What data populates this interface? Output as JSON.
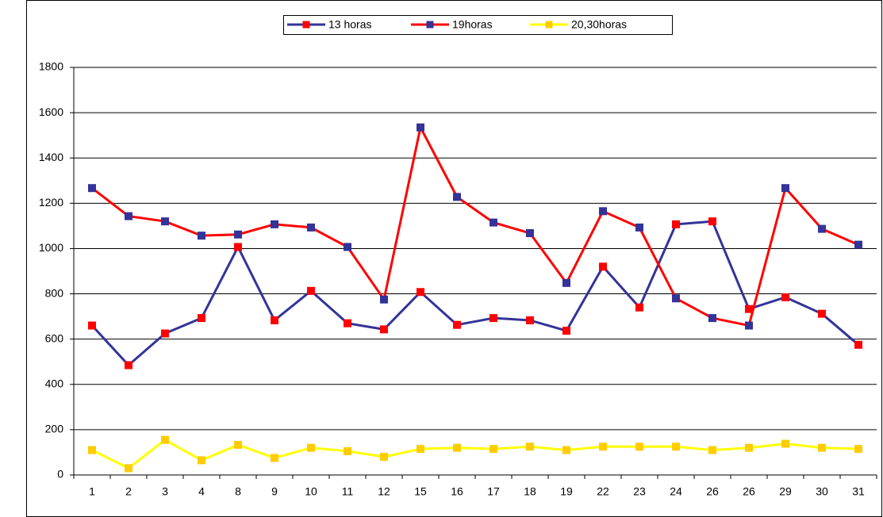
{
  "chart_data": {
    "type": "line",
    "categories": [
      "1",
      "2",
      "3",
      "4",
      "8",
      "9",
      "10",
      "11",
      "12",
      "15",
      "16",
      "17",
      "18",
      "19",
      "22",
      "23",
      "24",
      "26",
      "26",
      "29",
      "30",
      "31"
    ],
    "series": [
      {
        "name": "13 horas",
        "color": "#333399",
        "marker_color": "#ff0000",
        "values": [
          660,
          485,
          625,
          693,
          1007,
          683,
          813,
          670,
          643,
          808,
          663,
          693,
          683,
          637,
          920,
          740,
          1107,
          1120,
          733,
          785,
          712,
          575
        ]
      },
      {
        "name": "19horas",
        "color": "#ff0000",
        "marker_color": "#333399",
        "values": [
          1267,
          1143,
          1120,
          1057,
          1062,
          1107,
          1093,
          1007,
          775,
          1535,
          1228,
          1115,
          1068,
          848,
          1165,
          1093,
          780,
          693,
          660,
          1267,
          1087,
          1017
        ]
      },
      {
        "name": "20,30horas",
        "color": "#ffff00",
        "marker_color": "#ffcc00",
        "values": [
          110,
          30,
          155,
          65,
          133,
          75,
          120,
          105,
          80,
          115,
          120,
          115,
          125,
          110,
          125,
          125,
          125,
          110,
          120,
          138,
          120,
          115
        ]
      }
    ],
    "ylim": [
      0,
      1800
    ],
    "yticks": [
      0,
      200,
      400,
      600,
      800,
      1000,
      1200,
      1400,
      1600,
      1800
    ],
    "grid": true,
    "legend": "top"
  }
}
